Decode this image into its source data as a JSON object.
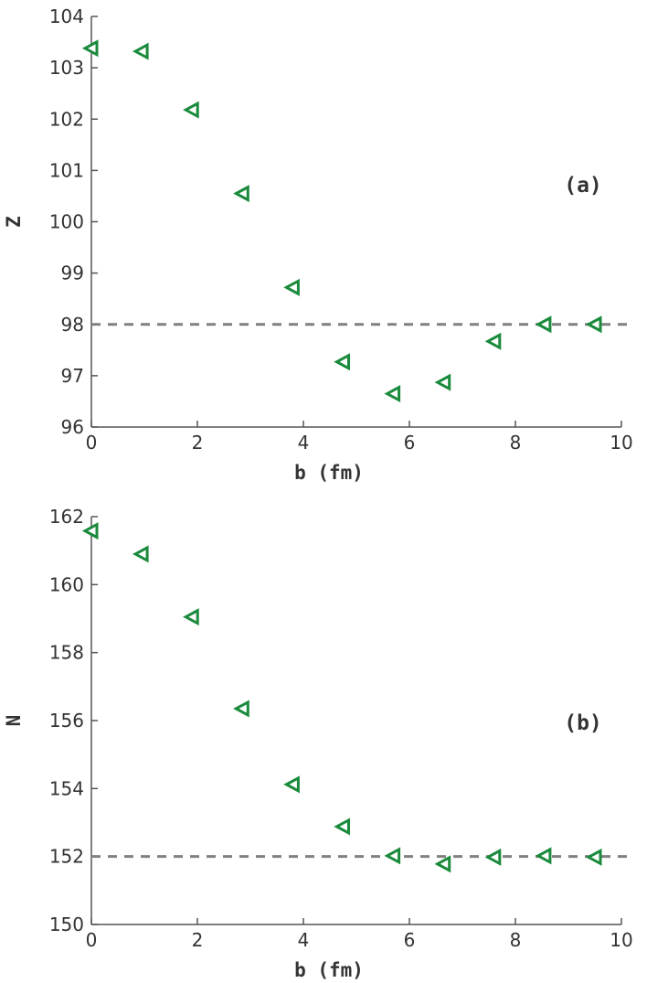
{
  "chart_data": [
    {
      "type": "scatter",
      "panel_label": "(a)",
      "xlabel": "b (fm)",
      "ylabel": "Z",
      "xlim": [
        0,
        10
      ],
      "ylim": [
        96,
        104
      ],
      "xticks": [
        0,
        2,
        4,
        6,
        8,
        10
      ],
      "yticks": [
        96,
        97,
        98,
        99,
        100,
        101,
        102,
        103,
        104
      ],
      "reference_line": 98,
      "marker": "triangle-left",
      "marker_color": "#1a8a3c",
      "reference_color": "#808080",
      "grid": false,
      "series": [
        {
          "x": [
            0,
            0.95,
            1.9,
            2.85,
            3.8,
            4.75,
            5.7,
            6.65,
            7.6,
            8.55,
            9.5
          ],
          "y": [
            103.38,
            103.32,
            102.18,
            100.55,
            98.72,
            97.27,
            96.65,
            96.87,
            97.67,
            98.0,
            98.0
          ]
        }
      ]
    },
    {
      "type": "scatter",
      "panel_label": "(b)",
      "xlabel": "b (fm)",
      "ylabel": "N",
      "xlim": [
        0,
        10
      ],
      "ylim": [
        150,
        162
      ],
      "xticks": [
        0,
        2,
        4,
        6,
        8,
        10
      ],
      "yticks": [
        150,
        152,
        154,
        156,
        158,
        160,
        162
      ],
      "reference_line": 152,
      "marker": "triangle-left",
      "marker_color": "#1a8a3c",
      "reference_color": "#808080",
      "grid": false,
      "series": [
        {
          "x": [
            0,
            0.95,
            1.9,
            2.85,
            3.8,
            4.75,
            5.7,
            6.65,
            7.6,
            8.55,
            9.5
          ],
          "y": [
            161.58,
            160.9,
            159.05,
            156.35,
            154.12,
            152.88,
            152.02,
            151.78,
            151.98,
            152.02,
            151.98
          ]
        }
      ]
    }
  ]
}
